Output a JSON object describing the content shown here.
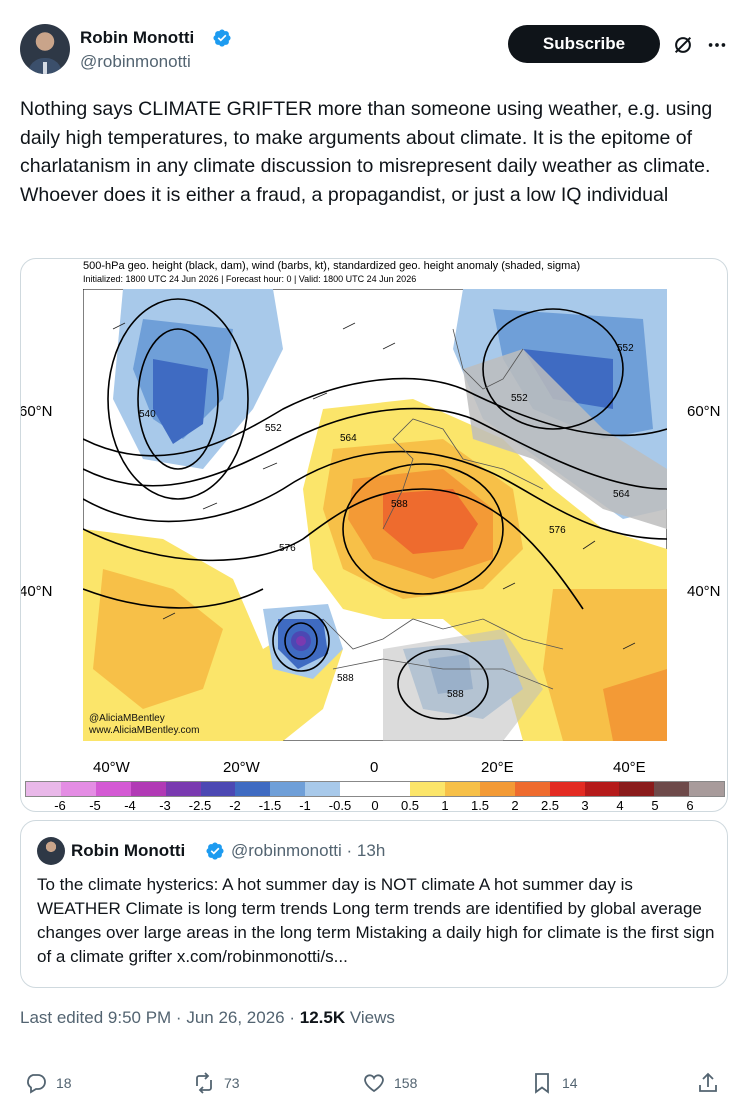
{
  "author": {
    "name": "Robin Monotti",
    "handle": "@robinmonotti"
  },
  "header": {
    "subscribe_label": "Subscribe"
  },
  "tweet": {
    "text": "Nothing says CLIMATE GRIFTER more than someone using weather, e.g. using daily high temperatures, to make arguments about climate. It is the epitome of charlatanism in any climate discussion to misrepresent daily weather as climate. Whoever does it is either a fraud, a propagandist, or just a low IQ individual"
  },
  "map": {
    "title": "500-hPa geo. height (black, dam), wind (barbs, kt), standardized geo. height anomaly (shaded, sigma)",
    "subtitle": "Initialized: 1800 UTC 24 Jun 2026 | Forecast hour: 0 | Valid: 1800 UTC 24 Jun 2026",
    "lat_labels": [
      "60°N",
      "40°N"
    ],
    "lon_labels": [
      "40°W",
      "20°W",
      "0",
      "20°E",
      "40°E"
    ],
    "contour_labels": [
      "540",
      "552",
      "564",
      "576",
      "588",
      "552",
      "552",
      "564",
      "576",
      "588",
      "588"
    ],
    "credit_line1": "@AliciaMBentley",
    "credit_line2": "www.AliciaMBentley.com",
    "colorbar_labels": [
      "-6",
      "-5",
      "-4",
      "-3",
      "-2.5",
      "-2",
      "-1.5",
      "-1",
      "-0.5",
      "0",
      "0.5",
      "1",
      "1.5",
      "2",
      "2.5",
      "3",
      "4",
      "5",
      "6"
    ],
    "colorbar_colors": [
      "#e9b8e9",
      "#e48de4",
      "#d45ad4",
      "#b13ab5",
      "#7a3ab0",
      "#4c48b3",
      "#3f6bc2",
      "#6f9fd8",
      "#a8c9ea",
      "#ffffff",
      "#ffffff",
      "#fbe56a",
      "#f7c048",
      "#f39a36",
      "#ee6b2e",
      "#e32b22",
      "#b51a1a",
      "#8a1b1b",
      "#6e4a4a",
      "#a89b9b"
    ]
  },
  "quote": {
    "name": "Robin Monotti",
    "handle": "@robinmonotti",
    "time": "13h",
    "text": "To the climate hysterics: A hot summer day is NOT climate A hot summer day is WEATHER Climate is long term trends Long term trends are identified by global average changes over large areas in the long term Mistaking a daily high for climate is the first sign of a climate grifter x.com/robinmonotti/s..."
  },
  "meta": {
    "edited": "Last edited 9:50 PM · Jun 26, 2026 · ",
    "views_count": "12.5K",
    "views_label": " Views"
  },
  "actions": {
    "replies": "18",
    "reposts": "73",
    "likes": "158",
    "bookmarks": "14"
  },
  "colors": {
    "verified_blue": "#1d9bf0",
    "text_primary": "#0f1419",
    "text_secondary": "#536471",
    "border": "#cfd9de"
  }
}
